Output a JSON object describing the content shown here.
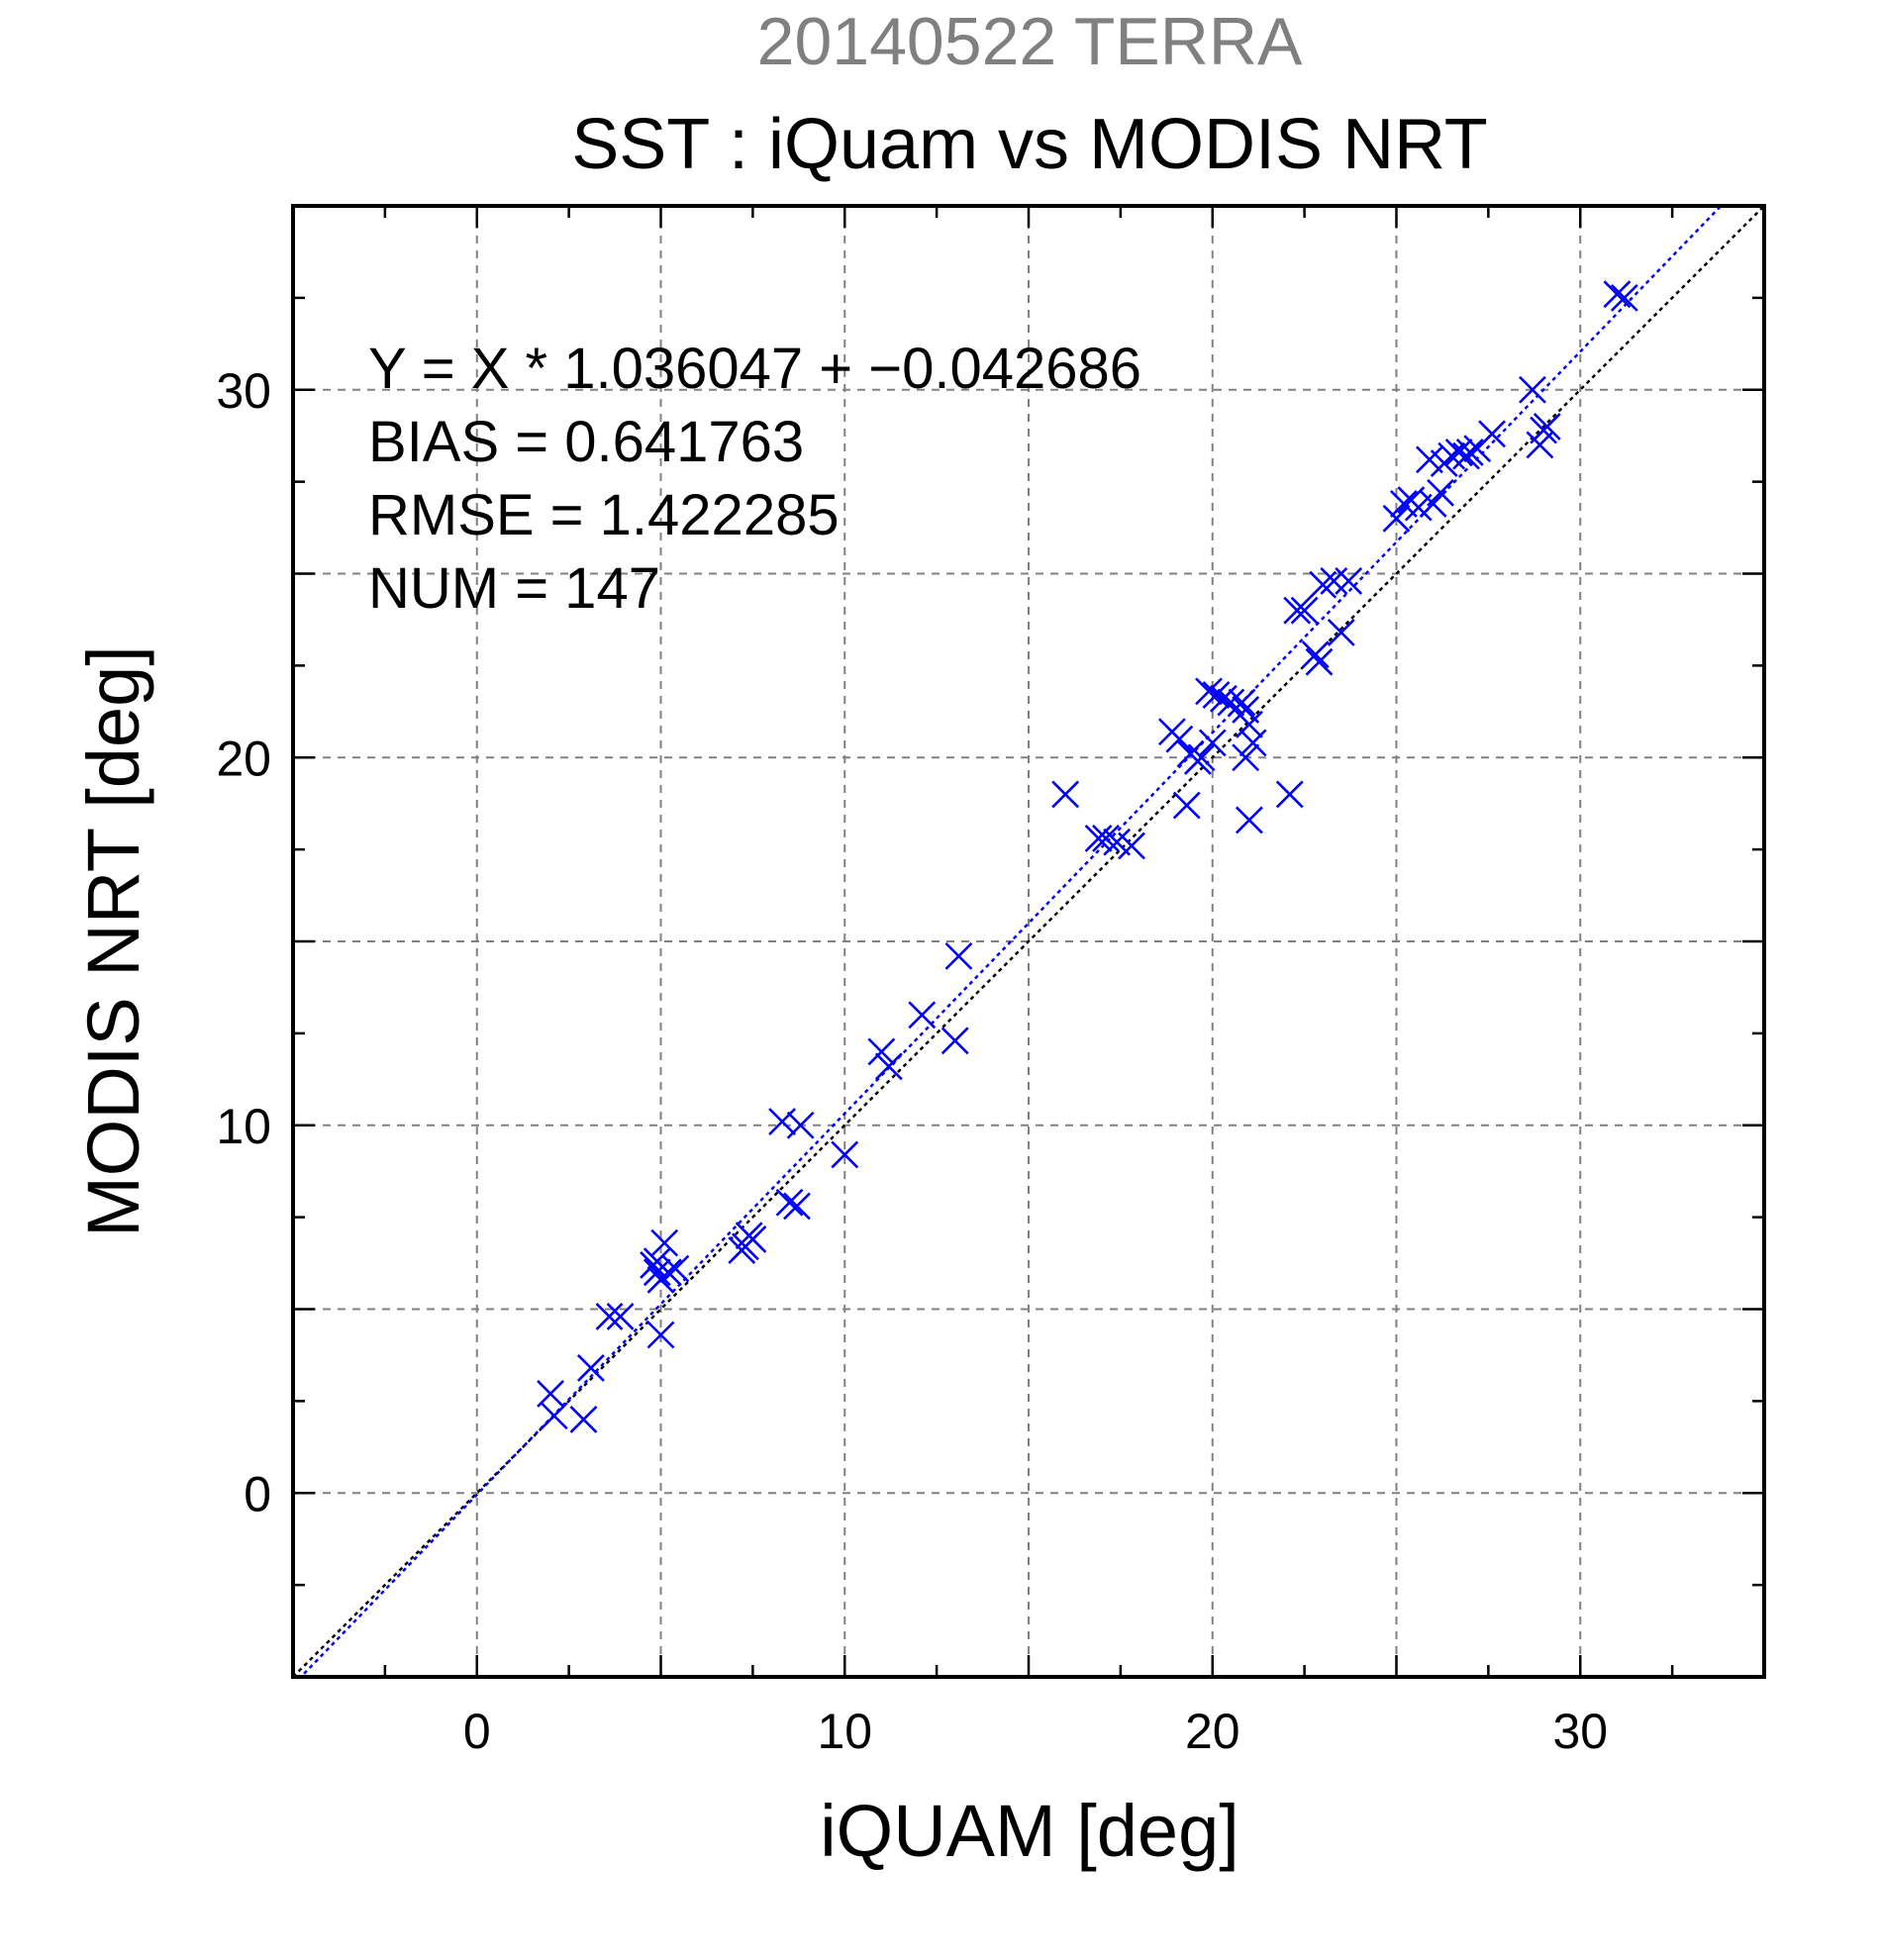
{
  "supertitle": "20140522 TERRA",
  "chart_data": {
    "type": "scatter",
    "title": "SST : iQuam vs MODIS NRT",
    "xlabel": "iQUAM [deg]",
    "ylabel": "MODIS NRT [deg]",
    "xlim": [
      -5,
      35
    ],
    "ylim": [
      -5,
      35
    ],
    "x_ticks": [
      0,
      10,
      20,
      30
    ],
    "y_ticks": [
      0,
      10,
      20,
      30
    ],
    "grid": true,
    "fit": {
      "slope": 1.036047,
      "intercept": -0.042686
    },
    "stats": [
      "Y = X * 1.036047 + −0.042686",
      "BIAS = 0.641763",
      "RMSE = 1.422285",
      "NUM = 147"
    ],
    "colors": {
      "points": "#0000ff",
      "fit_line": "#0000ff",
      "identity_line": "#000000",
      "grid": "#808080"
    },
    "series": [
      {
        "marker": "x",
        "x": [
          2.0,
          2.1,
          2.9,
          3.1,
          3.6,
          3.9,
          4.8,
          4.9,
          5.0,
          5.1,
          5.0,
          4.9,
          5.2,
          5.4,
          7.2,
          7.3,
          7.4,
          7.5,
          8.3,
          8.5,
          8.7,
          8.8,
          10.0,
          11.0,
          11.2,
          12.1,
          13.0,
          13.1,
          16.0,
          16.9,
          17.1,
          17.4,
          17.8,
          18.9,
          19.1,
          19.3,
          19.4,
          19.6,
          19.7,
          19.9,
          20.0,
          20.1,
          20.3,
          20.5,
          20.8,
          20.9,
          21.0,
          21.1,
          20.9,
          21.0,
          22.1,
          22.3,
          22.5,
          22.8,
          22.9,
          23.0,
          23.3,
          23.5,
          23.7,
          25.0,
          25.2,
          25.4,
          25.6,
          25.9,
          26.0,
          26.2,
          26.3,
          26.5,
          26.7,
          26.9,
          27.0,
          27.2,
          27.6,
          28.7,
          28.9,
          29.0,
          29.1,
          31.0,
          31.2
        ],
        "y": [
          2.7,
          2.1,
          2.0,
          3.4,
          4.8,
          4.8,
          6.2,
          6.0,
          5.8,
          6.8,
          4.3,
          6.3,
          6.0,
          6.1,
          6.6,
          6.7,
          7.0,
          6.9,
          10.1,
          7.9,
          7.8,
          10.0,
          9.2,
          12.0,
          11.6,
          13.0,
          12.3,
          14.6,
          19.0,
          17.8,
          17.8,
          17.7,
          17.6,
          20.7,
          20.5,
          18.7,
          20.1,
          19.9,
          20.0,
          21.8,
          20.4,
          21.7,
          21.6,
          21.5,
          21.5,
          21.3,
          20.9,
          20.4,
          20.0,
          18.3,
          19.0,
          24.0,
          24.0,
          22.8,
          22.6,
          24.7,
          24.8,
          23.4,
          24.8,
          26.5,
          26.9,
          27.0,
          26.8,
          28.1,
          26.9,
          27.2,
          28.0,
          28.2,
          28.3,
          28.2,
          28.3,
          28.4,
          28.8,
          30.0,
          28.5,
          28.9,
          29.0,
          32.6,
          32.5
        ]
      }
    ]
  }
}
